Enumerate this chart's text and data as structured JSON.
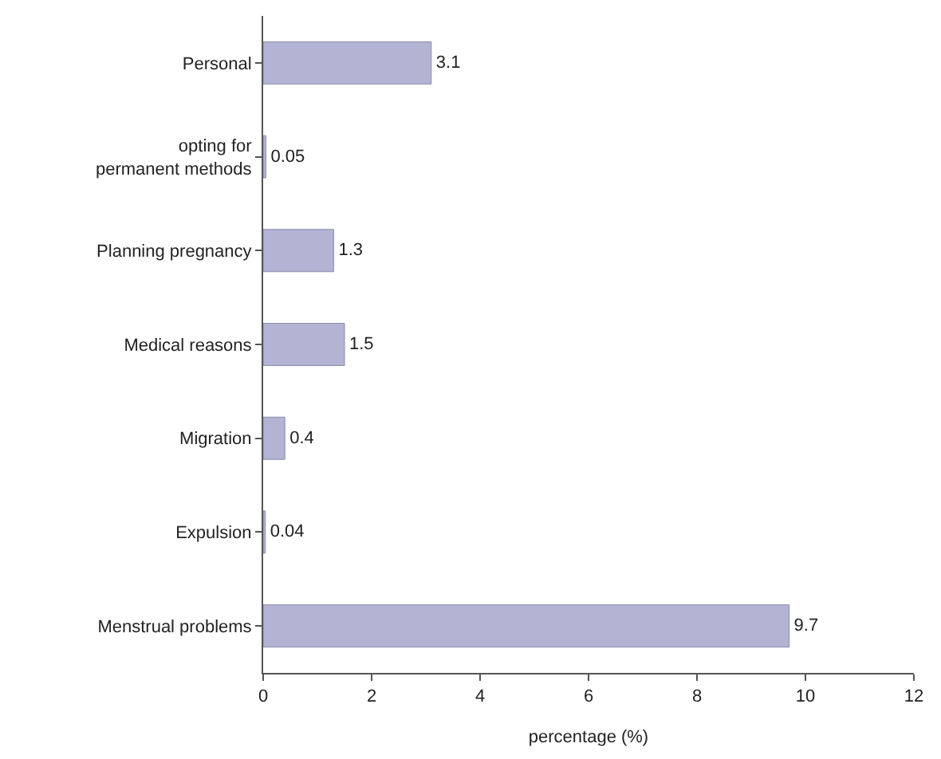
{
  "chart_data": {
    "type": "bar",
    "orientation": "horizontal",
    "xlabel": "percentage (%)",
    "categories": [
      "Personal",
      "opting for\npermanent methods",
      "Planning pregnancy",
      "Medical reasons",
      "Migration",
      "Expulsion",
      "Menstrual problems"
    ],
    "values": [
      3.1,
      0.05,
      1.3,
      1.5,
      0.4,
      0.04,
      9.7
    ],
    "color": "#b3b3d4",
    "xlim": [
      0,
      12
    ],
    "xticks": [
      0,
      2,
      4,
      6,
      8,
      10,
      12
    ],
    "data_labels": true
  }
}
